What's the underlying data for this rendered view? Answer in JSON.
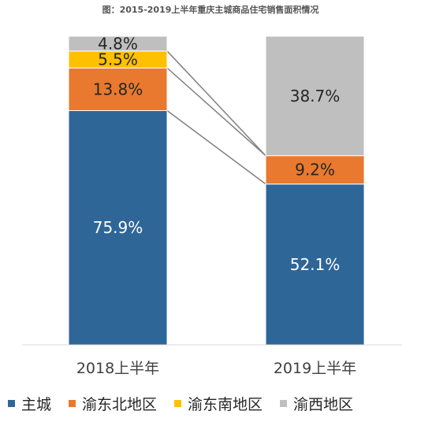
{
  "chart_data": {
    "type": "bar",
    "stacked": true,
    "normalized_percent": true,
    "title": "图：2015-2019上半年重庆主城商品住宅销售面积情况",
    "categories": [
      "2018上半年",
      "2019上半年"
    ],
    "series": [
      {
        "name": "主城",
        "color": "#2E6698",
        "values": [
          75.9,
          52.1
        ],
        "labels": [
          "75.9%",
          "52.1%"
        ]
      },
      {
        "name": "渝东北地区",
        "color": "#E8792E",
        "values": [
          13.8,
          9.2
        ],
        "labels": [
          "13.8%",
          "9.2%"
        ]
      },
      {
        "name": "渝东南地区",
        "color": "#FFC000",
        "values": [
          5.5,
          0
        ],
        "labels": [
          "5.5%",
          ""
        ]
      },
      {
        "name": "渝西地区",
        "color": "#BFBFBF",
        "values": [
          4.8,
          38.7
        ],
        "labels": [
          "4.8%",
          "38.7%"
        ]
      }
    ],
    "ylim": [
      0,
      100
    ],
    "series_lines": true,
    "grid": false,
    "legend_position": "bottom"
  }
}
